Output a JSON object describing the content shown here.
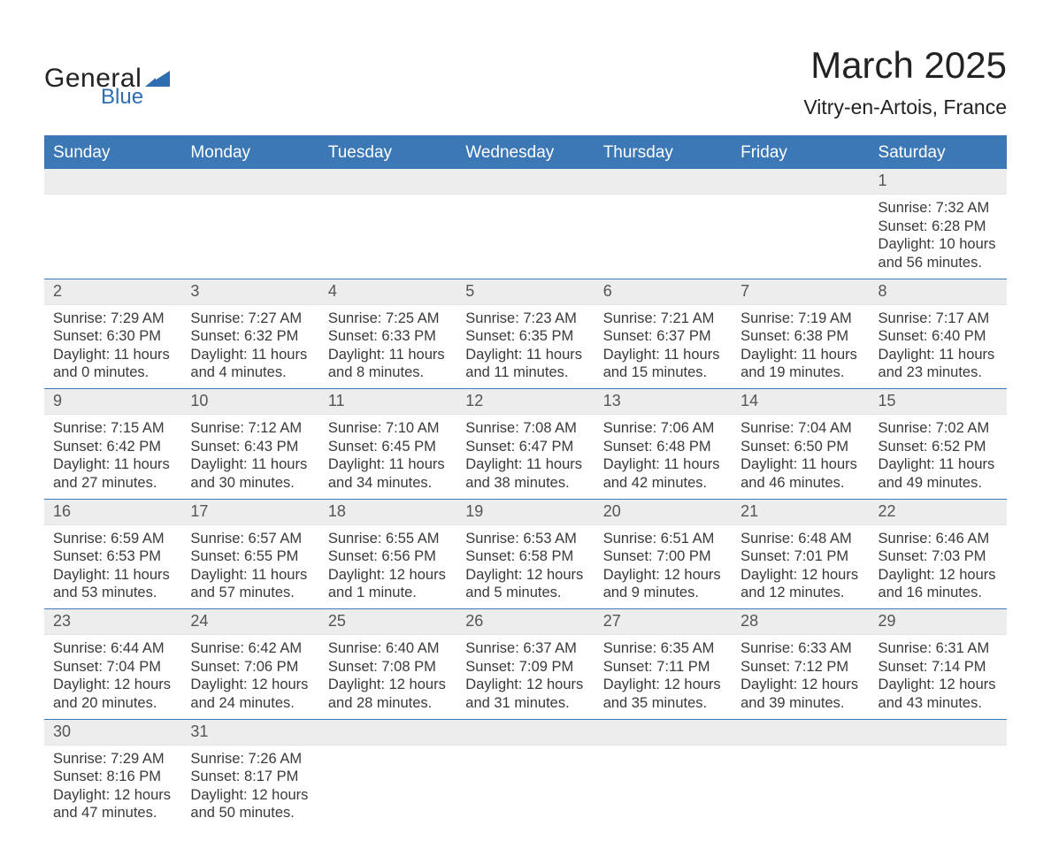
{
  "brand": {
    "name1": "General",
    "name2": "Blue",
    "logo_color": "#2d6db0",
    "text_color": "#222222"
  },
  "title": "March 2025",
  "location": "Vitry-en-Artois, France",
  "colors": {
    "header_bg": "#3b78b5",
    "header_text": "#ffffff",
    "grid_border": "#3b78b5",
    "daynum_bg": "#ededed",
    "body_text": "#3a3a3a",
    "page_bg": "#ffffff"
  },
  "fonts": {
    "title_size": 42,
    "location_size": 23,
    "weekday_size": 19,
    "daynum_size": 18,
    "body_size": 16.5
  },
  "weekdays": [
    "Sunday",
    "Monday",
    "Tuesday",
    "Wednesday",
    "Thursday",
    "Friday",
    "Saturday"
  ],
  "weeks": [
    [
      {
        "blank": true
      },
      {
        "blank": true
      },
      {
        "blank": true
      },
      {
        "blank": true
      },
      {
        "blank": true
      },
      {
        "blank": true
      },
      {
        "day": "1",
        "sunrise": "Sunrise: 7:32 AM",
        "sunset": "Sunset: 6:28 PM",
        "day1": "Daylight: 10 hours",
        "day2": "and 56 minutes."
      }
    ],
    [
      {
        "day": "2",
        "sunrise": "Sunrise: 7:29 AM",
        "sunset": "Sunset: 6:30 PM",
        "day1": "Daylight: 11 hours",
        "day2": "and 0 minutes."
      },
      {
        "day": "3",
        "sunrise": "Sunrise: 7:27 AM",
        "sunset": "Sunset: 6:32 PM",
        "day1": "Daylight: 11 hours",
        "day2": "and 4 minutes."
      },
      {
        "day": "4",
        "sunrise": "Sunrise: 7:25 AM",
        "sunset": "Sunset: 6:33 PM",
        "day1": "Daylight: 11 hours",
        "day2": "and 8 minutes."
      },
      {
        "day": "5",
        "sunrise": "Sunrise: 7:23 AM",
        "sunset": "Sunset: 6:35 PM",
        "day1": "Daylight: 11 hours",
        "day2": "and 11 minutes."
      },
      {
        "day": "6",
        "sunrise": "Sunrise: 7:21 AM",
        "sunset": "Sunset: 6:37 PM",
        "day1": "Daylight: 11 hours",
        "day2": "and 15 minutes."
      },
      {
        "day": "7",
        "sunrise": "Sunrise: 7:19 AM",
        "sunset": "Sunset: 6:38 PM",
        "day1": "Daylight: 11 hours",
        "day2": "and 19 minutes."
      },
      {
        "day": "8",
        "sunrise": "Sunrise: 7:17 AM",
        "sunset": "Sunset: 6:40 PM",
        "day1": "Daylight: 11 hours",
        "day2": "and 23 minutes."
      }
    ],
    [
      {
        "day": "9",
        "sunrise": "Sunrise: 7:15 AM",
        "sunset": "Sunset: 6:42 PM",
        "day1": "Daylight: 11 hours",
        "day2": "and 27 minutes."
      },
      {
        "day": "10",
        "sunrise": "Sunrise: 7:12 AM",
        "sunset": "Sunset: 6:43 PM",
        "day1": "Daylight: 11 hours",
        "day2": "and 30 minutes."
      },
      {
        "day": "11",
        "sunrise": "Sunrise: 7:10 AM",
        "sunset": "Sunset: 6:45 PM",
        "day1": "Daylight: 11 hours",
        "day2": "and 34 minutes."
      },
      {
        "day": "12",
        "sunrise": "Sunrise: 7:08 AM",
        "sunset": "Sunset: 6:47 PM",
        "day1": "Daylight: 11 hours",
        "day2": "and 38 minutes."
      },
      {
        "day": "13",
        "sunrise": "Sunrise: 7:06 AM",
        "sunset": "Sunset: 6:48 PM",
        "day1": "Daylight: 11 hours",
        "day2": "and 42 minutes."
      },
      {
        "day": "14",
        "sunrise": "Sunrise: 7:04 AM",
        "sunset": "Sunset: 6:50 PM",
        "day1": "Daylight: 11 hours",
        "day2": "and 46 minutes."
      },
      {
        "day": "15",
        "sunrise": "Sunrise: 7:02 AM",
        "sunset": "Sunset: 6:52 PM",
        "day1": "Daylight: 11 hours",
        "day2": "and 49 minutes."
      }
    ],
    [
      {
        "day": "16",
        "sunrise": "Sunrise: 6:59 AM",
        "sunset": "Sunset: 6:53 PM",
        "day1": "Daylight: 11 hours",
        "day2": "and 53 minutes."
      },
      {
        "day": "17",
        "sunrise": "Sunrise: 6:57 AM",
        "sunset": "Sunset: 6:55 PM",
        "day1": "Daylight: 11 hours",
        "day2": "and 57 minutes."
      },
      {
        "day": "18",
        "sunrise": "Sunrise: 6:55 AM",
        "sunset": "Sunset: 6:56 PM",
        "day1": "Daylight: 12 hours",
        "day2": "and 1 minute."
      },
      {
        "day": "19",
        "sunrise": "Sunrise: 6:53 AM",
        "sunset": "Sunset: 6:58 PM",
        "day1": "Daylight: 12 hours",
        "day2": "and 5 minutes."
      },
      {
        "day": "20",
        "sunrise": "Sunrise: 6:51 AM",
        "sunset": "Sunset: 7:00 PM",
        "day1": "Daylight: 12 hours",
        "day2": "and 9 minutes."
      },
      {
        "day": "21",
        "sunrise": "Sunrise: 6:48 AM",
        "sunset": "Sunset: 7:01 PM",
        "day1": "Daylight: 12 hours",
        "day2": "and 12 minutes."
      },
      {
        "day": "22",
        "sunrise": "Sunrise: 6:46 AM",
        "sunset": "Sunset: 7:03 PM",
        "day1": "Daylight: 12 hours",
        "day2": "and 16 minutes."
      }
    ],
    [
      {
        "day": "23",
        "sunrise": "Sunrise: 6:44 AM",
        "sunset": "Sunset: 7:04 PM",
        "day1": "Daylight: 12 hours",
        "day2": "and 20 minutes."
      },
      {
        "day": "24",
        "sunrise": "Sunrise: 6:42 AM",
        "sunset": "Sunset: 7:06 PM",
        "day1": "Daylight: 12 hours",
        "day2": "and 24 minutes."
      },
      {
        "day": "25",
        "sunrise": "Sunrise: 6:40 AM",
        "sunset": "Sunset: 7:08 PM",
        "day1": "Daylight: 12 hours",
        "day2": "and 28 minutes."
      },
      {
        "day": "26",
        "sunrise": "Sunrise: 6:37 AM",
        "sunset": "Sunset: 7:09 PM",
        "day1": "Daylight: 12 hours",
        "day2": "and 31 minutes."
      },
      {
        "day": "27",
        "sunrise": "Sunrise: 6:35 AM",
        "sunset": "Sunset: 7:11 PM",
        "day1": "Daylight: 12 hours",
        "day2": "and 35 minutes."
      },
      {
        "day": "28",
        "sunrise": "Sunrise: 6:33 AM",
        "sunset": "Sunset: 7:12 PM",
        "day1": "Daylight: 12 hours",
        "day2": "and 39 minutes."
      },
      {
        "day": "29",
        "sunrise": "Sunrise: 6:31 AM",
        "sunset": "Sunset: 7:14 PM",
        "day1": "Daylight: 12 hours",
        "day2": "and 43 minutes."
      }
    ],
    [
      {
        "day": "30",
        "sunrise": "Sunrise: 7:29 AM",
        "sunset": "Sunset: 8:16 PM",
        "day1": "Daylight: 12 hours",
        "day2": "and 47 minutes."
      },
      {
        "day": "31",
        "sunrise": "Sunrise: 7:26 AM",
        "sunset": "Sunset: 8:17 PM",
        "day1": "Daylight: 12 hours",
        "day2": "and 50 minutes."
      },
      {
        "blank": true
      },
      {
        "blank": true
      },
      {
        "blank": true
      },
      {
        "blank": true
      },
      {
        "blank": true
      }
    ]
  ]
}
